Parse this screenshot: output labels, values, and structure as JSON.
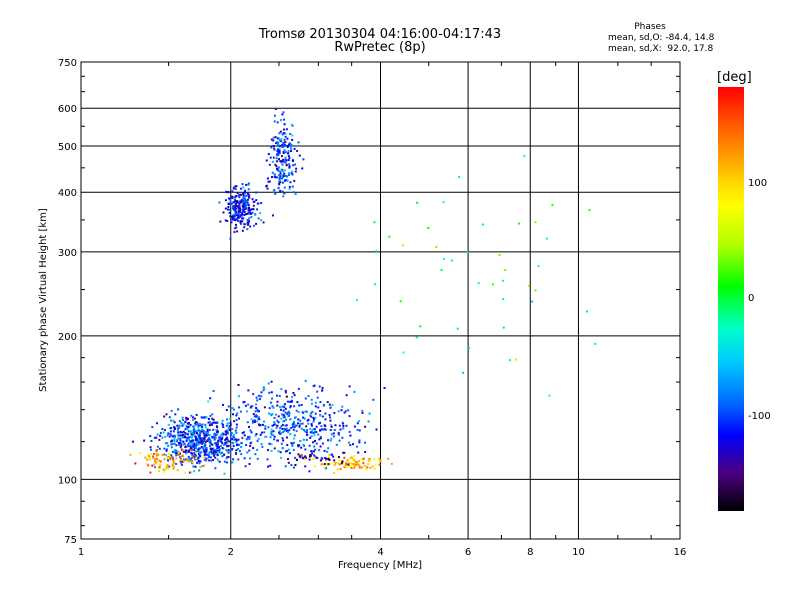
{
  "chart_data": {
    "type": "scatter",
    "title": "Tromsø 20130304 04:16:00-04:17:43",
    "subtitle": "RwPretec (8p)",
    "xlabel": "Frequency [MHz]",
    "ylabel": "Stationary phase Virtual Height [km]",
    "x_scale": "log",
    "y_scale": "log",
    "xlim": [
      1,
      16
    ],
    "ylim": [
      75,
      750
    ],
    "x_ticks": [
      1,
      2,
      4,
      6,
      8,
      10,
      16
    ],
    "y_ticks": [
      75,
      100,
      200,
      300,
      400,
      500,
      600,
      750
    ],
    "grid": true,
    "phase_stats": {
      "heading": "Phases",
      "o_mode": "mean, sd,O: -84.4, 14.8",
      "x_mode": "mean, sd,X:  92.0, 17.8"
    },
    "colorbar": {
      "label": "[deg]",
      "ticks": [
        "100",
        "0",
        "-100"
      ],
      "range": [
        -180,
        180
      ]
    },
    "clusters": [
      {
        "x_center": 1.75,
        "x_spread": 0.3,
        "y_center": 120,
        "y_spread": 0.1,
        "phase": -100,
        "count": 650
      },
      {
        "x_center": 2.7,
        "x_spread": 0.45,
        "y_center": 130,
        "y_spread": 0.15,
        "phase": -100,
        "count": 450
      },
      {
        "x_center": 1.5,
        "x_spread": 0.2,
        "y_center": 110,
        "y_spread": 0.05,
        "phase": 110,
        "count": 90
      },
      {
        "x_center": 3.5,
        "x_spread": 0.25,
        "y_center": 108,
        "y_spread": 0.03,
        "phase": 110,
        "count": 90
      },
      {
        "x_center": 3.0,
        "x_spread": 0.2,
        "y_center": 110,
        "y_spread": 0.04,
        "phase": -150,
        "count": 30
      },
      {
        "x_center": 2.1,
        "x_spread": 0.1,
        "y_center": 370,
        "y_spread": 0.08,
        "phase": -110,
        "count": 250
      },
      {
        "x_center": 2.55,
        "x_spread": 0.1,
        "y_center": 470,
        "y_spread": 0.15,
        "phase": -100,
        "count": 200
      },
      {
        "x_center": 6,
        "x_spread": 0.9,
        "y_center": 280,
        "y_spread": 0.5,
        "phase": 0,
        "count": 45
      }
    ]
  }
}
